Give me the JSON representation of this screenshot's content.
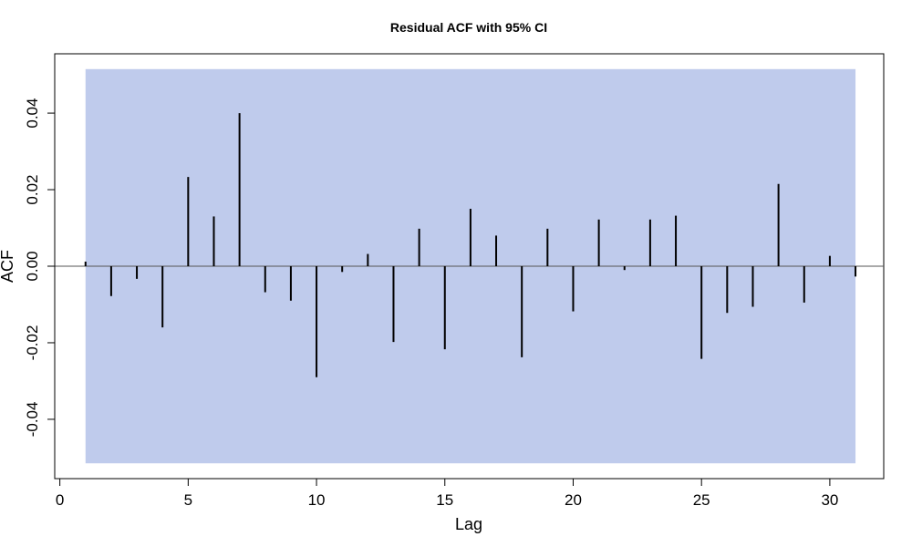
{
  "chart_data": {
    "type": "bar",
    "title": "Residual ACF with 95% CI",
    "xlabel": "Lag",
    "ylabel": "ACF",
    "x": [
      1,
      2,
      3,
      4,
      5,
      6,
      7,
      8,
      9,
      10,
      11,
      12,
      13,
      14,
      15,
      16,
      17,
      18,
      19,
      20,
      21,
      22,
      23,
      24,
      25,
      26,
      27,
      28,
      29,
      30,
      31
    ],
    "values": [
      0.0012,
      -0.0078,
      -0.0033,
      -0.016,
      0.0233,
      0.013,
      0.04,
      -0.0068,
      -0.009,
      -0.029,
      -0.0015,
      0.0032,
      -0.0198,
      0.0098,
      -0.0217,
      0.015,
      0.008,
      -0.0238,
      0.0098,
      -0.0118,
      0.0122,
      -0.001,
      0.0122,
      0.0132,
      -0.0242,
      -0.0122,
      -0.0106,
      0.0215,
      -0.0095,
      0.0027,
      -0.0027
    ],
    "ci": [
      -0.0515,
      0.0515
    ],
    "xlim": [
      -0.2,
      32.1
    ],
    "ylim": [
      -0.0555,
      0.0555
    ],
    "xticks": [
      "0",
      "5",
      "10",
      "15",
      "20",
      "25",
      "30"
    ],
    "yticks": [
      "-0.04",
      "-0.02",
      "0.00",
      "0.02",
      "0.04"
    ],
    "grid": false,
    "colors": {
      "ci_band": "#bfcbec",
      "lines": "#000000",
      "zero_line": "#555555"
    }
  }
}
